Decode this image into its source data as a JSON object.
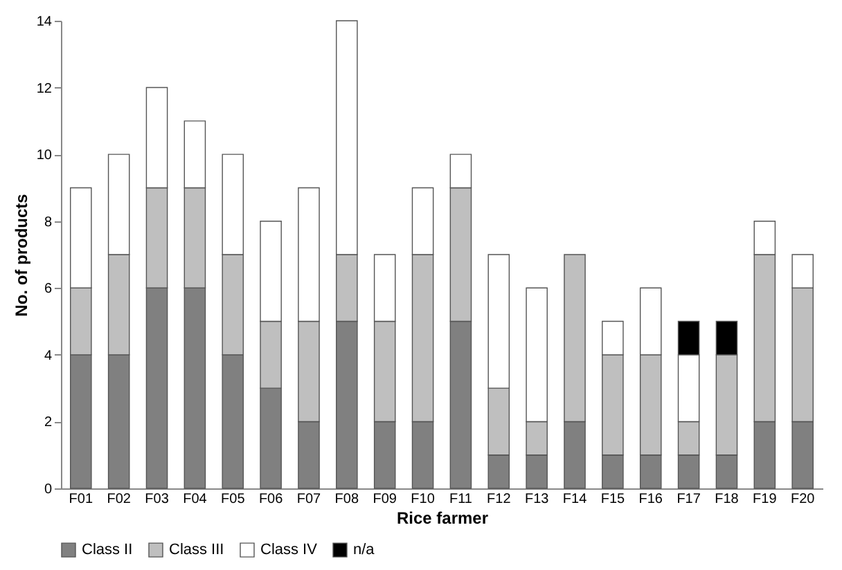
{
  "chart_data": {
    "type": "bar",
    "stacked": true,
    "xlabel": "Rice farmer",
    "ylabel": "No. of products",
    "categories": [
      "F01",
      "F02",
      "F03",
      "F04",
      "F05",
      "F06",
      "F07",
      "F08",
      "F09",
      "F10",
      "F11",
      "F12",
      "F13",
      "F14",
      "F15",
      "F16",
      "F17",
      "F18",
      "F19",
      "F20"
    ],
    "series": [
      {
        "name": "Class II",
        "color": "#808080",
        "values": [
          4,
          4,
          6,
          6,
          4,
          3,
          2,
          5,
          2,
          2,
          5,
          1,
          1,
          2,
          1,
          1,
          1,
          1,
          2,
          2
        ]
      },
      {
        "name": "Class III",
        "color": "#bfbfbf",
        "values": [
          2,
          3,
          3,
          3,
          3,
          2,
          3,
          2,
          3,
          5,
          4,
          2,
          1,
          5,
          3,
          3,
          1,
          3,
          5,
          4
        ]
      },
      {
        "name": "Class IV",
        "color": "#ffffff",
        "values": [
          3,
          3,
          3,
          2,
          3,
          3,
          4,
          7,
          2,
          2,
          1,
          4,
          4,
          0,
          1,
          2,
          2,
          0,
          1,
          1
        ]
      },
      {
        "name": "n/a",
        "color": "#000000",
        "values": [
          0,
          0,
          0,
          0,
          0,
          0,
          0,
          0,
          0,
          0,
          0,
          0,
          0,
          0,
          0,
          0,
          1,
          1,
          0,
          0
        ]
      }
    ],
    "ylim": [
      0,
      14
    ],
    "yticks": [
      0,
      2,
      4,
      6,
      8,
      10,
      12,
      14
    ],
    "grid": false,
    "legend": "bottom"
  }
}
